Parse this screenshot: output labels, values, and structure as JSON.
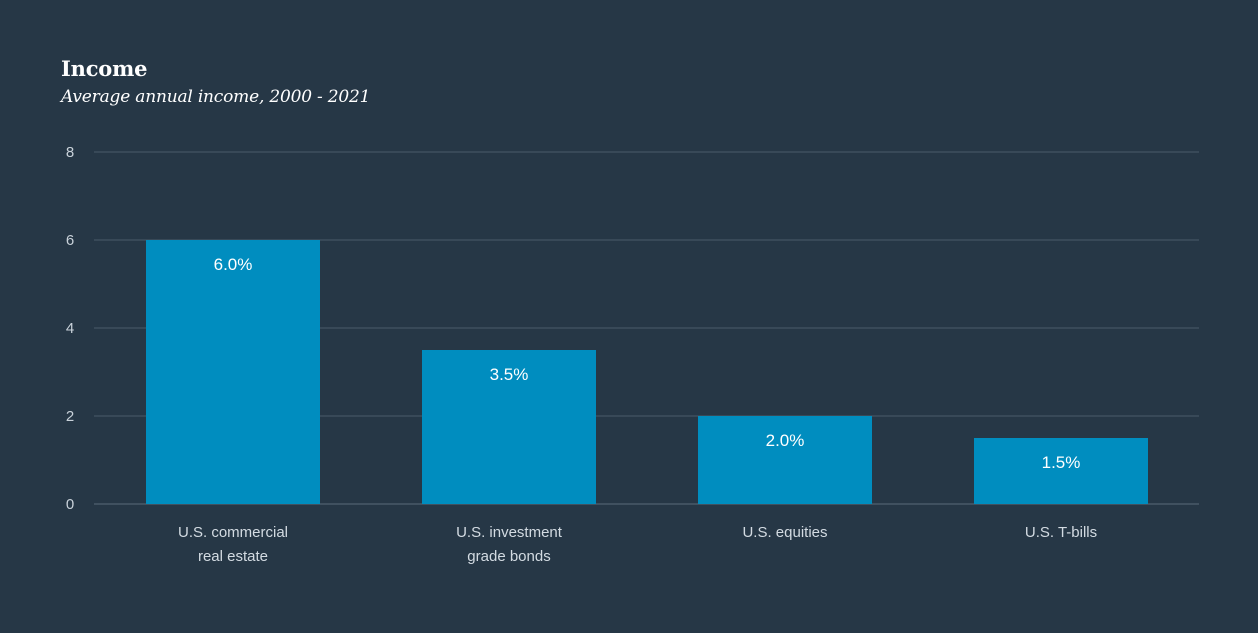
{
  "chart_data": {
    "type": "bar",
    "title": "Income",
    "subtitle": "Average annual income, 2000 - 2021",
    "categories": [
      [
        "U.S. commercial",
        "real estate"
      ],
      [
        "U.S. investment",
        "grade bonds"
      ],
      [
        "U.S. equities"
      ],
      [
        "U.S. T-bills"
      ]
    ],
    "values": [
      6.0,
      3.5,
      2.0,
      1.5
    ],
    "data_labels": [
      "6.0%",
      "3.5%",
      "2.0%",
      "1.5%"
    ],
    "ylim": [
      0,
      8
    ],
    "yticks": [
      0,
      2,
      4,
      6,
      8
    ],
    "xlabel": "",
    "ylabel": "",
    "grid": true,
    "legend": "none"
  },
  "colors": {
    "background": "#263746",
    "bar": "#008dbf",
    "grid": "#4a5b69",
    "axis": "#5a6b79"
  }
}
